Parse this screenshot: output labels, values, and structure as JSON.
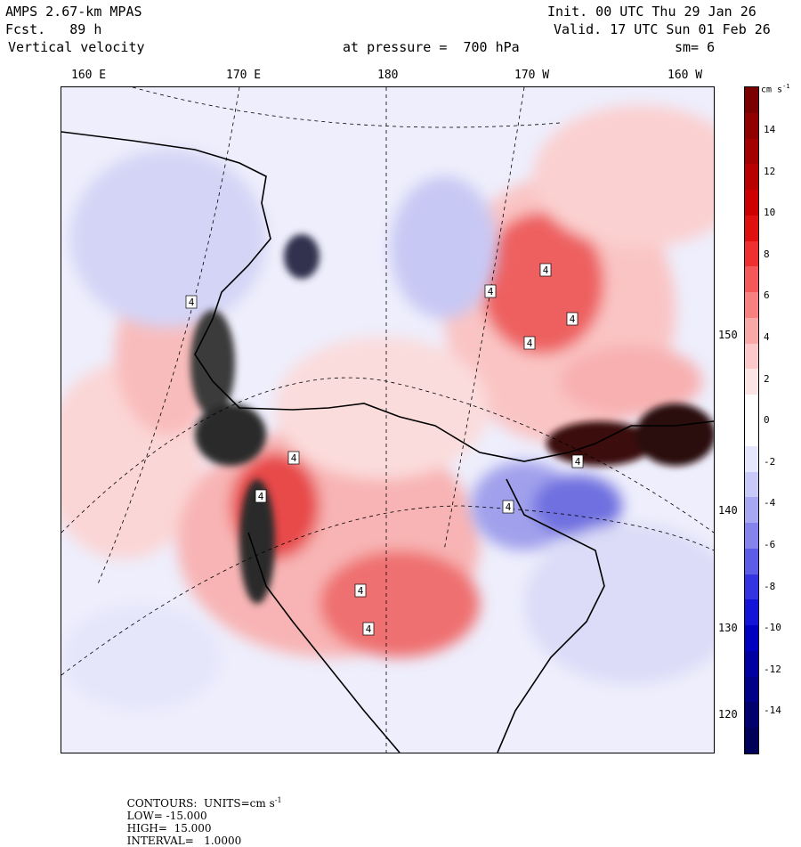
{
  "header": {
    "model": "AMPS 2.67-km MPAS",
    "forecast": "Fcst.   89 h",
    "field": "Vertical velocity",
    "init": "Init. 00 UTC Thu 29 Jan 26",
    "valid": "Valid. 17 UTC Sun 01 Feb 26",
    "pressure": "at pressure =  700 hPa",
    "smoothing": "sm= 6"
  },
  "map": {
    "longitude_labels": [
      "160 E",
      "170 E",
      "180",
      "170 W",
      "160 W"
    ],
    "latitude_labels": [
      "150 W",
      "140 W",
      "130 W",
      "120 W"
    ],
    "contour_labels": [
      "4",
      "4",
      "4",
      "4",
      "4",
      "4",
      "4",
      "4",
      "4",
      "4",
      "4"
    ]
  },
  "colorbar": {
    "units": "cm s",
    "units_exp": "-1",
    "labels": [
      "14",
      "12",
      "10",
      "8",
      "6",
      "4",
      "2",
      "0",
      "-2",
      "-4",
      "-6",
      "-8",
      "-10",
      "-12",
      "-14"
    ],
    "colors": [
      "#7a0000",
      "#900000",
      "#a50000",
      "#b80000",
      "#cc0000",
      "#de1010",
      "#ee3030",
      "#f55858",
      "#f88080",
      "#f9a8a8",
      "#fbc9c9",
      "#fde4e4",
      "#ffffff",
      "#ffffff",
      "#e6e6ff",
      "#c9c9f8",
      "#a8a8f2",
      "#8484ec",
      "#5c5ce6",
      "#3434e0",
      "#1414d8",
      "#0000c0",
      "#0000a0",
      "#000088",
      "#00006e",
      "#000058"
    ]
  },
  "footer": {
    "contours": "CONTOURS:  UNITS=cm s",
    "units_exp": "-1",
    "low": "LOW= -15.000",
    "high": "HIGH=  15.000",
    "interval": "INTERVAL=   1.0000"
  }
}
